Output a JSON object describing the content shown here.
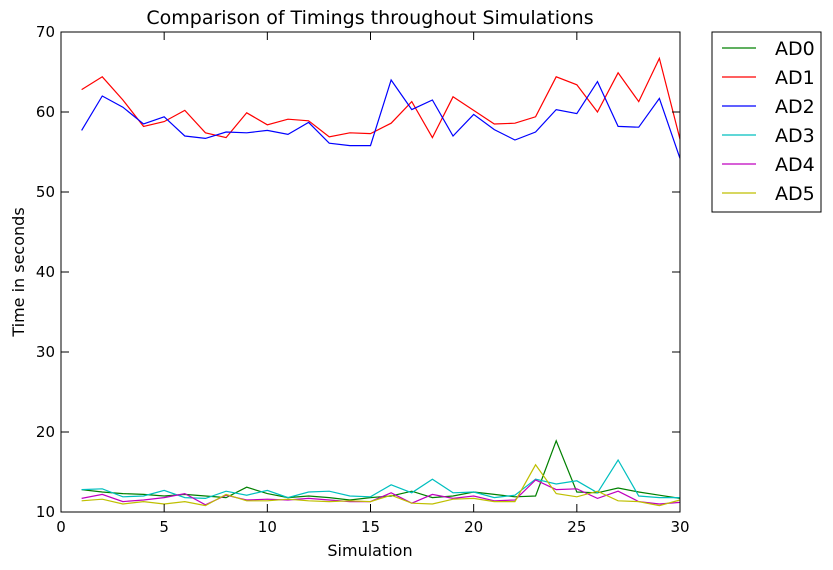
{
  "chart_data": {
    "type": "line",
    "title": "Comparison of Timings throughout Simulations",
    "xlabel": "Simulation",
    "ylabel": "Time in seconds",
    "xlim": [
      0,
      30
    ],
    "ylim": [
      10,
      70
    ],
    "xticks": [
      0,
      5,
      10,
      15,
      20,
      25,
      30
    ],
    "yticks": [
      10,
      20,
      30,
      40,
      50,
      60,
      70
    ],
    "grid": false,
    "legend_position": "outside-right-top",
    "x": [
      1,
      2,
      3,
      4,
      5,
      6,
      7,
      8,
      9,
      10,
      11,
      12,
      13,
      14,
      15,
      16,
      17,
      18,
      19,
      20,
      21,
      22,
      23,
      24,
      25,
      26,
      27,
      28,
      29,
      30
    ],
    "series": [
      {
        "name": "AD0",
        "color": "#008000",
        "values": [
          12.8,
          12.5,
          12.3,
          12.2,
          12.0,
          12.2,
          12.0,
          11.8,
          13.1,
          12.3,
          11.8,
          12.0,
          11.8,
          11.5,
          11.8,
          12.0,
          12.6,
          11.8,
          12.0,
          12.5,
          12.2,
          11.9,
          12.0,
          18.9,
          12.5,
          12.4,
          13.0,
          12.5,
          12.1,
          11.7
        ]
      },
      {
        "name": "AD1",
        "color": "#ff0000",
        "values": [
          62.8,
          64.4,
          61.5,
          58.2,
          58.8,
          60.2,
          57.4,
          56.8,
          59.9,
          58.4,
          59.1,
          58.9,
          56.9,
          57.4,
          57.3,
          58.6,
          61.3,
          56.8,
          61.9,
          60.2,
          58.5,
          58.6,
          59.4,
          64.4,
          63.4,
          60.0,
          64.9,
          61.3,
          66.7,
          56.6
        ]
      },
      {
        "name": "AD2",
        "color": "#0000ff",
        "values": [
          57.7,
          62.0,
          60.6,
          58.5,
          59.4,
          57.0,
          56.7,
          57.5,
          57.4,
          57.7,
          57.2,
          58.7,
          56.1,
          55.8,
          55.8,
          64.0,
          60.3,
          61.5,
          57.0,
          59.7,
          57.8,
          56.5,
          57.5,
          60.3,
          59.8,
          63.8,
          58.2,
          58.1,
          61.7,
          54.2
        ]
      },
      {
        "name": "AD3",
        "color": "#00bfbf",
        "values": [
          12.8,
          12.9,
          11.9,
          12.0,
          12.7,
          11.8,
          11.7,
          12.6,
          12.1,
          12.7,
          11.8,
          12.5,
          12.6,
          12.0,
          11.9,
          13.4,
          12.4,
          14.1,
          12.4,
          12.5,
          11.8,
          12.1,
          14.1,
          13.5,
          13.9,
          12.4,
          16.5,
          12.0,
          11.8,
          11.8
        ]
      },
      {
        "name": "AD4",
        "color": "#bf00bf",
        "values": [
          11.7,
          12.2,
          11.3,
          11.5,
          11.8,
          12.3,
          10.9,
          12.1,
          11.5,
          11.6,
          11.5,
          11.7,
          11.5,
          11.3,
          11.3,
          12.4,
          11.1,
          12.2,
          11.7,
          12.0,
          11.4,
          11.5,
          14.0,
          12.8,
          12.9,
          11.7,
          12.6,
          11.3,
          11.0,
          11.2
        ]
      },
      {
        "name": "AD5",
        "color": "#bfbf00",
        "values": [
          11.4,
          11.6,
          11.0,
          11.3,
          11.0,
          11.3,
          10.8,
          12.2,
          11.4,
          11.4,
          11.6,
          11.4,
          11.3,
          11.4,
          11.3,
          12.1,
          11.1,
          11.0,
          11.6,
          11.7,
          11.3,
          11.3,
          15.9,
          12.3,
          11.9,
          12.6,
          11.4,
          11.3,
          10.8,
          11.5
        ]
      }
    ]
  }
}
